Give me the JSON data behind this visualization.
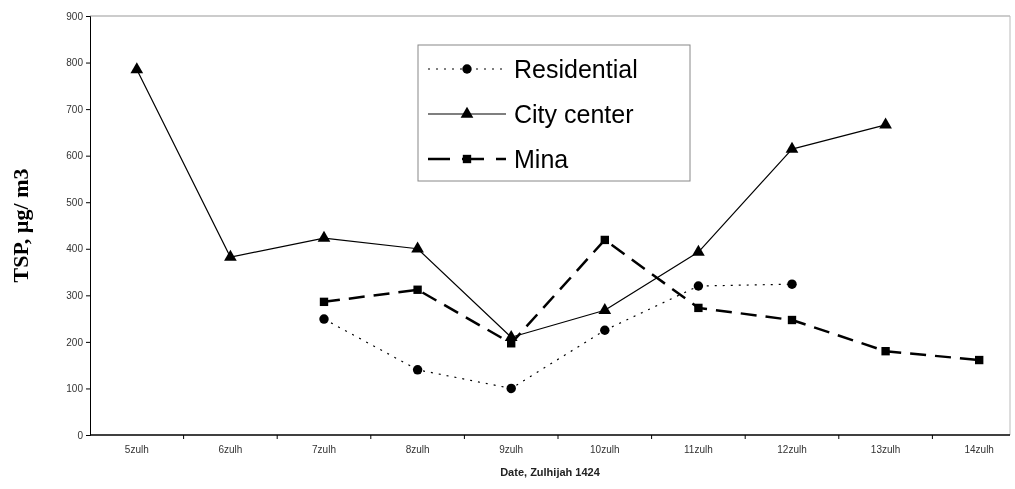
{
  "chart_data": {
    "type": "line",
    "xlabel": "Date, Zulhijah 1424",
    "ylabel": "TSP, µg/ m3",
    "categories": [
      "5zulh",
      "6zulh",
      "7zulh",
      "8zulh",
      "9zulh",
      "10zulh",
      "11zulh",
      "12zulh",
      "13zulh",
      "14zulh"
    ],
    "ylim": [
      0,
      900
    ],
    "yticks": [
      0,
      100,
      200,
      300,
      400,
      500,
      600,
      700,
      800,
      900
    ],
    "legend": "top",
    "grid": false,
    "series": [
      {
        "name": "Residential",
        "color": "#000000",
        "marker": "circle",
        "line_style": "dotted",
        "values": [
          null,
          null,
          249,
          140,
          100,
          225,
          320,
          324,
          null,
          null
        ]
      },
      {
        "name": "City center",
        "color": "#000000",
        "marker": "triangle",
        "line_style": "solid",
        "values": [
          785,
          382,
          423,
          400,
          210,
          268,
          393,
          614,
          666,
          null
        ]
      },
      {
        "name": "Mina",
        "color": "#000000",
        "marker": "square",
        "line_style": "dashed",
        "values": [
          null,
          null,
          286,
          312,
          197,
          419,
          273,
          247,
          180,
          161
        ]
      }
    ]
  }
}
